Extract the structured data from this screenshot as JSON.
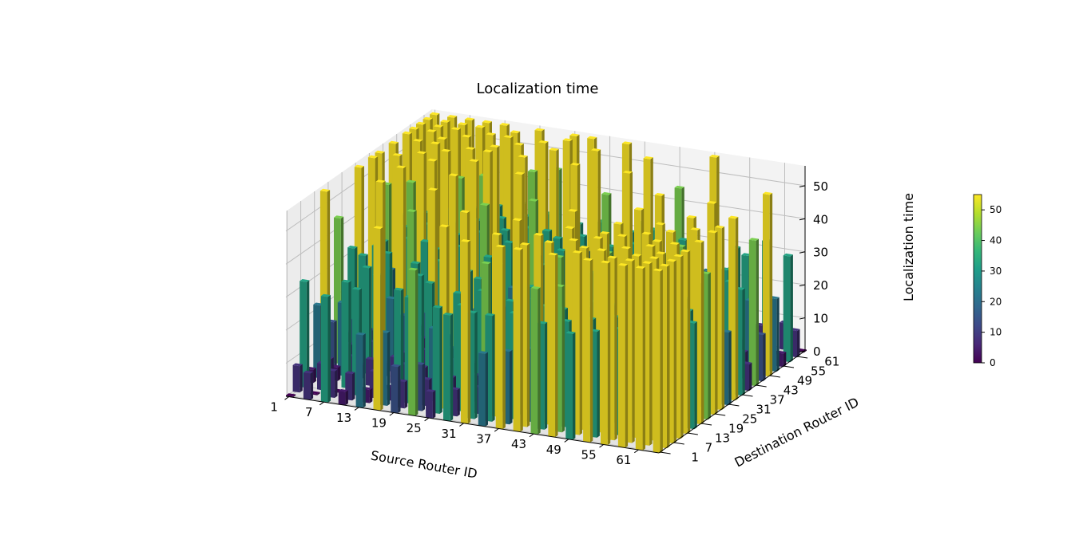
{
  "chart_data": {
    "type": "bar3d",
    "title": "Localization time",
    "xlabel": "Source Router ID",
    "ylabel": "Destination Router ID",
    "zlabel": "Localization time",
    "x_ticks": [
      "1",
      "7",
      "13",
      "19",
      "25",
      "31",
      "37",
      "43",
      "49",
      "55",
      "61"
    ],
    "y_ticks": [
      "1",
      "7",
      "13",
      "19",
      "25",
      "31",
      "37",
      "43",
      "49",
      "55",
      "61"
    ],
    "z_ticks": [
      "0",
      "10",
      "20",
      "30",
      "40",
      "50"
    ],
    "zlim": [
      0,
      56
    ],
    "colormap": "viridis",
    "colorbar": {
      "ticks": [
        "0",
        "10",
        "20",
        "30",
        "40",
        "50"
      ],
      "range": [
        0,
        55
      ]
    },
    "grid": "8x8 mesh of routers (IDs 1-64); router r has mesh coordinates (((r-1) mod 8), floor((r-1)/8))",
    "sampling": "bars drawn for every 3rd source and destination router ID (1, 4, 7, ..., 64)",
    "value_rule": "localization time ~ 2 * (mesh hop distance between source and destination)^2 / 2.23, peak about 55 at opposite corners, 0 on the diagonal",
    "max_value": 55
  }
}
